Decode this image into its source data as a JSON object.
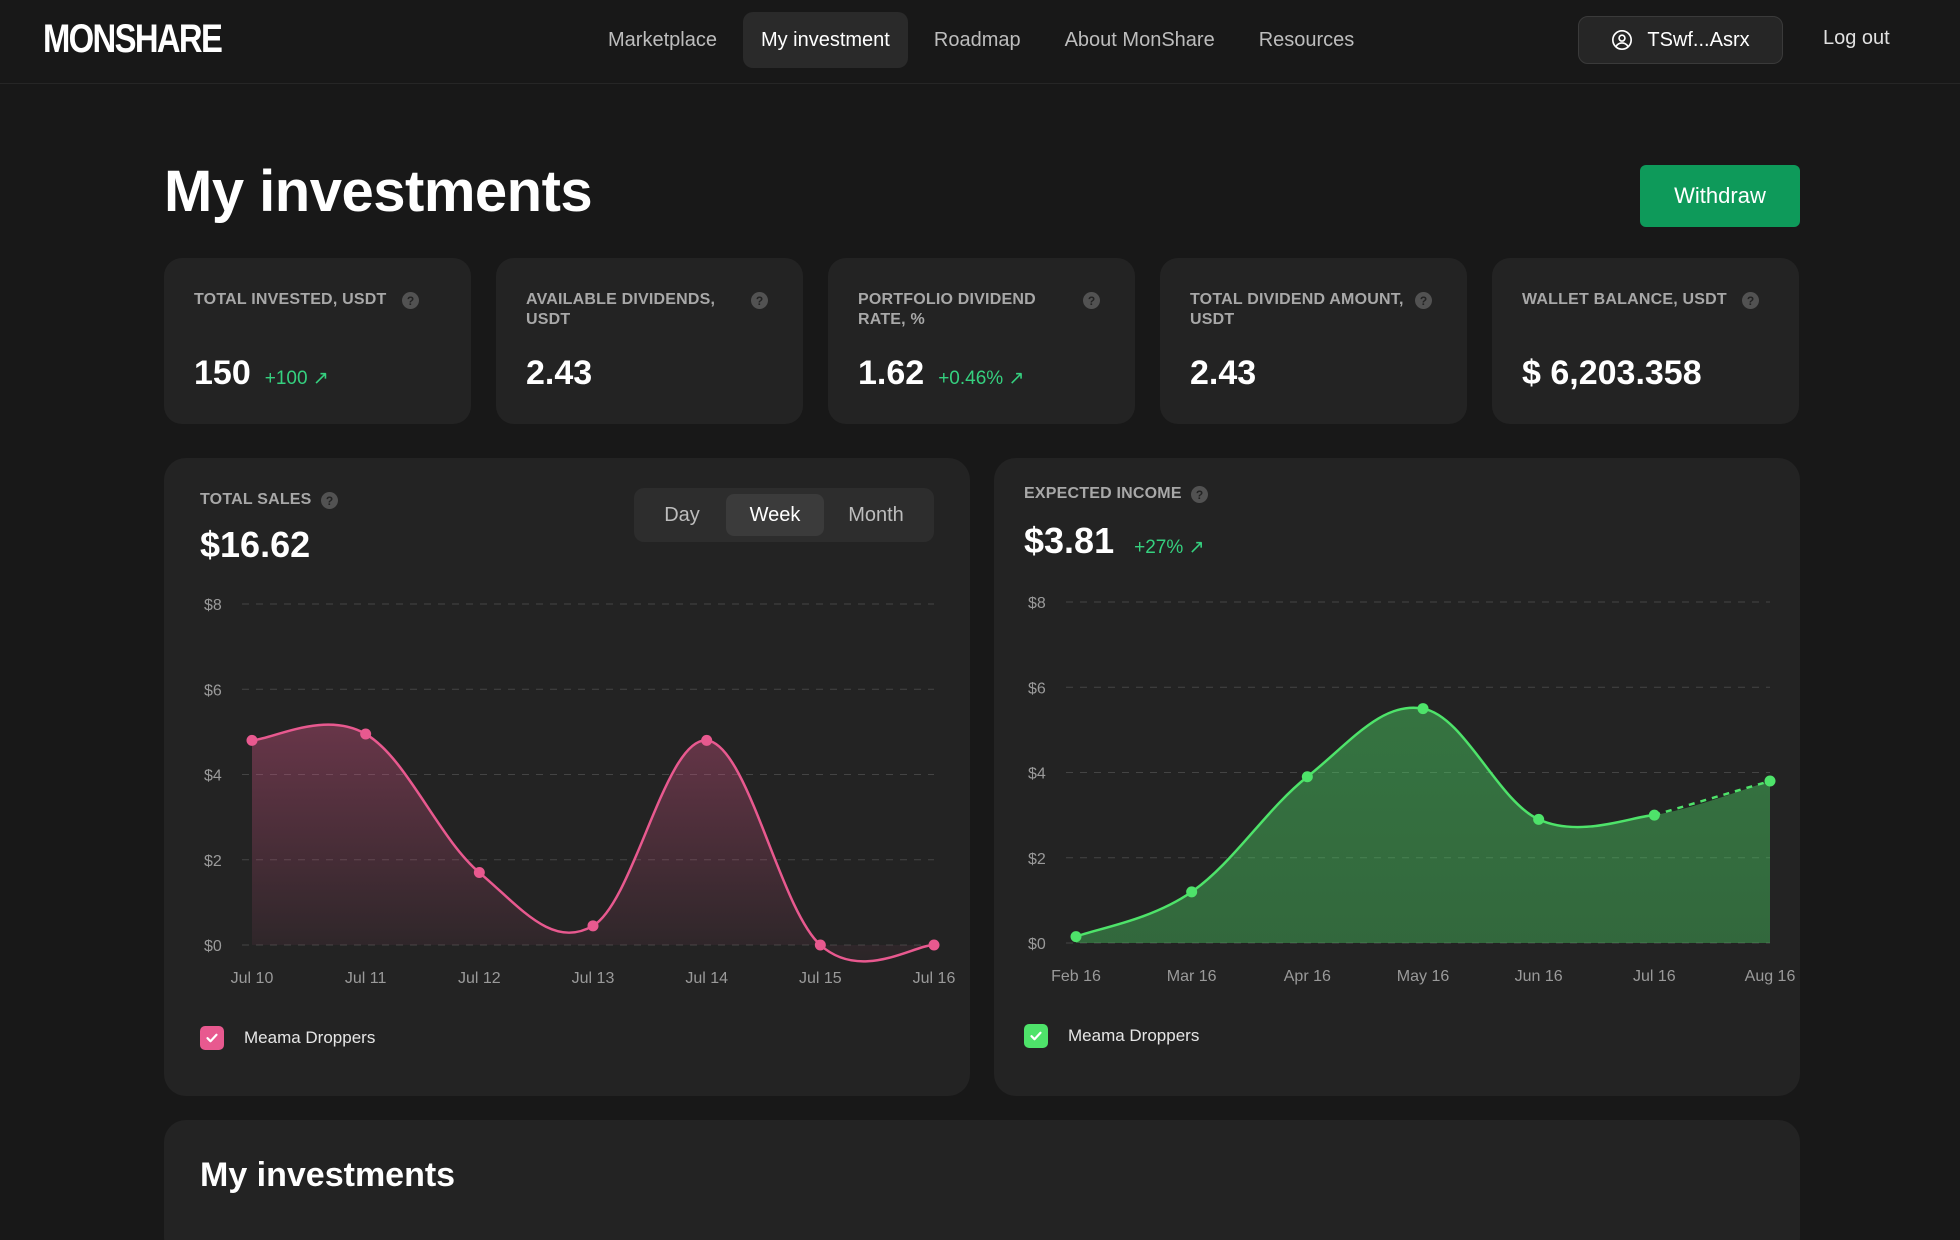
{
  "brand": {
    "logo_text": "MONSHARE"
  },
  "nav": {
    "items": [
      {
        "label": "Marketplace"
      },
      {
        "label": "My investment"
      },
      {
        "label": "Roadmap"
      },
      {
        "label": "About MonShare"
      },
      {
        "label": "Resources"
      }
    ],
    "active_index": 1
  },
  "account": {
    "wallet_label": "TSwf...Asrx",
    "logout_label": "Log out"
  },
  "page": {
    "title": "My investments",
    "withdraw_label": "Withdraw"
  },
  "stats": [
    {
      "label": "TOTAL INVESTED, USDT",
      "value": "150",
      "delta": "+100 ↗"
    },
    {
      "label": "AVAILABLE DIVIDENDS, USDT",
      "value": "2.43",
      "delta": ""
    },
    {
      "label": "PORTFOLIO DIVIDEND RATE, %",
      "value": "1.62",
      "delta": "+0.46% ↗"
    },
    {
      "label": "TOTAL DIVIDEND AMOUNT, USDT",
      "value": "2.43",
      "delta": ""
    },
    {
      "label": "WALLET BALANCE, USDT",
      "value": "$ 6,203.358",
      "delta": ""
    }
  ],
  "sales": {
    "label": "TOTAL SALES",
    "value": "$16.62",
    "periods": [
      "Day",
      "Week",
      "Month"
    ],
    "active_period": "Week",
    "legend": "Meama Droppers"
  },
  "income": {
    "label": "EXPECTED INCOME",
    "value": "$3.81",
    "delta": "+27% ↗",
    "legend": "Meama Droppers"
  },
  "bottom": {
    "title": "My investments"
  },
  "colors": {
    "pink": "#e8598f",
    "green": "#4ee36a",
    "accent": "#0e9a5a"
  },
  "chart_data": [
    {
      "type": "area",
      "title": "TOTAL SALES",
      "categories": [
        "Jul 10",
        "Jul 11",
        "Jul 12",
        "Jul 13",
        "Jul 14",
        "Jul 15",
        "Jul 16"
      ],
      "yticks": [
        "$0",
        "$2",
        "$4",
        "$6",
        "$8"
      ],
      "ylim": [
        0,
        8
      ],
      "grid": true,
      "series": [
        {
          "name": "Meama Droppers",
          "values": [
            4.8,
            4.95,
            1.7,
            0.45,
            4.8,
            0,
            0
          ],
          "color": "#e8598f"
        }
      ]
    },
    {
      "type": "area",
      "title": "EXPECTED INCOME",
      "categories": [
        "Feb 16",
        "Mar 16",
        "Apr 16",
        "May 16",
        "Jun 16",
        "Jul 16",
        "Aug 16"
      ],
      "yticks": [
        "$0",
        "$2",
        "$4",
        "$6",
        "$8"
      ],
      "ylim": [
        0,
        8
      ],
      "grid": true,
      "series": [
        {
          "name": "Meama Droppers",
          "values": [
            0.15,
            1.2,
            3.9,
            5.5,
            2.9,
            3.0,
            3.8
          ],
          "color": "#4ee36a",
          "projected_last": true
        }
      ]
    }
  ]
}
